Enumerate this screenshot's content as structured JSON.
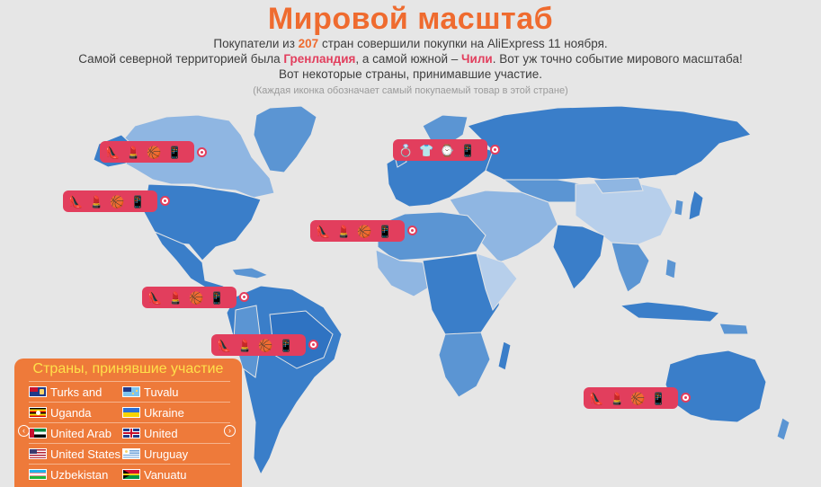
{
  "title": "Мировой масштаб",
  "lines": {
    "l1a": "Покупатели из ",
    "l1num": "207",
    "l1b": " стран совершили покупки на AliExpress 11 ноября.",
    "l2a": "Самой северной территорией была ",
    "l2north": "Гренландия",
    "l2b": ", а самой южной – ",
    "l2south": "Чили",
    "l2c": ". Вот уж точно событие мирового масштаба!",
    "l3": "Вот некоторые страны, принимавшие участие."
  },
  "note": "(Каждая иконка обозначает самый покупаемый товар в этой стране)",
  "icons": {
    "shoe": "high-heel-icon",
    "lipstick": "lipstick-icon",
    "ball": "basketball-icon",
    "phone": "phone-icon",
    "ring": "ring-icon",
    "tshirt": "tshirt-icon",
    "watch": "watch-icon"
  },
  "colors": {
    "accent": "#ef6b2f",
    "pin": "#e23e5d",
    "panel": "#ee7a3a",
    "panel_title": "#ffe04a",
    "land_dark": "#3a7ec9",
    "land_mid": "#5b95d3",
    "land_light": "#8fb6e2",
    "land_pale": "#b7cfeb"
  },
  "panel": {
    "title": "Страны, принявшие участие",
    "prev": "‹",
    "next": "›",
    "rows": [
      [
        {
          "name": "Turks and",
          "flag": "turks"
        },
        {
          "name": "Tuvalu",
          "flag": "tuvalu"
        }
      ],
      [
        {
          "name": "Uganda",
          "flag": "uganda"
        },
        {
          "name": "Ukraine",
          "flag": "ukraine"
        }
      ],
      [
        {
          "name": "United Arab",
          "flag": "uae"
        },
        {
          "name": "United",
          "flag": "uk"
        }
      ],
      [
        {
          "name": "United States",
          "flag": "us"
        },
        {
          "name": "Uruguay",
          "flag": "uruguay"
        }
      ],
      [
        {
          "name": "Uzbekistan",
          "flag": "uzbekistan"
        },
        {
          "name": "Vanuatu",
          "flag": "vanuatu"
        }
      ]
    ]
  }
}
